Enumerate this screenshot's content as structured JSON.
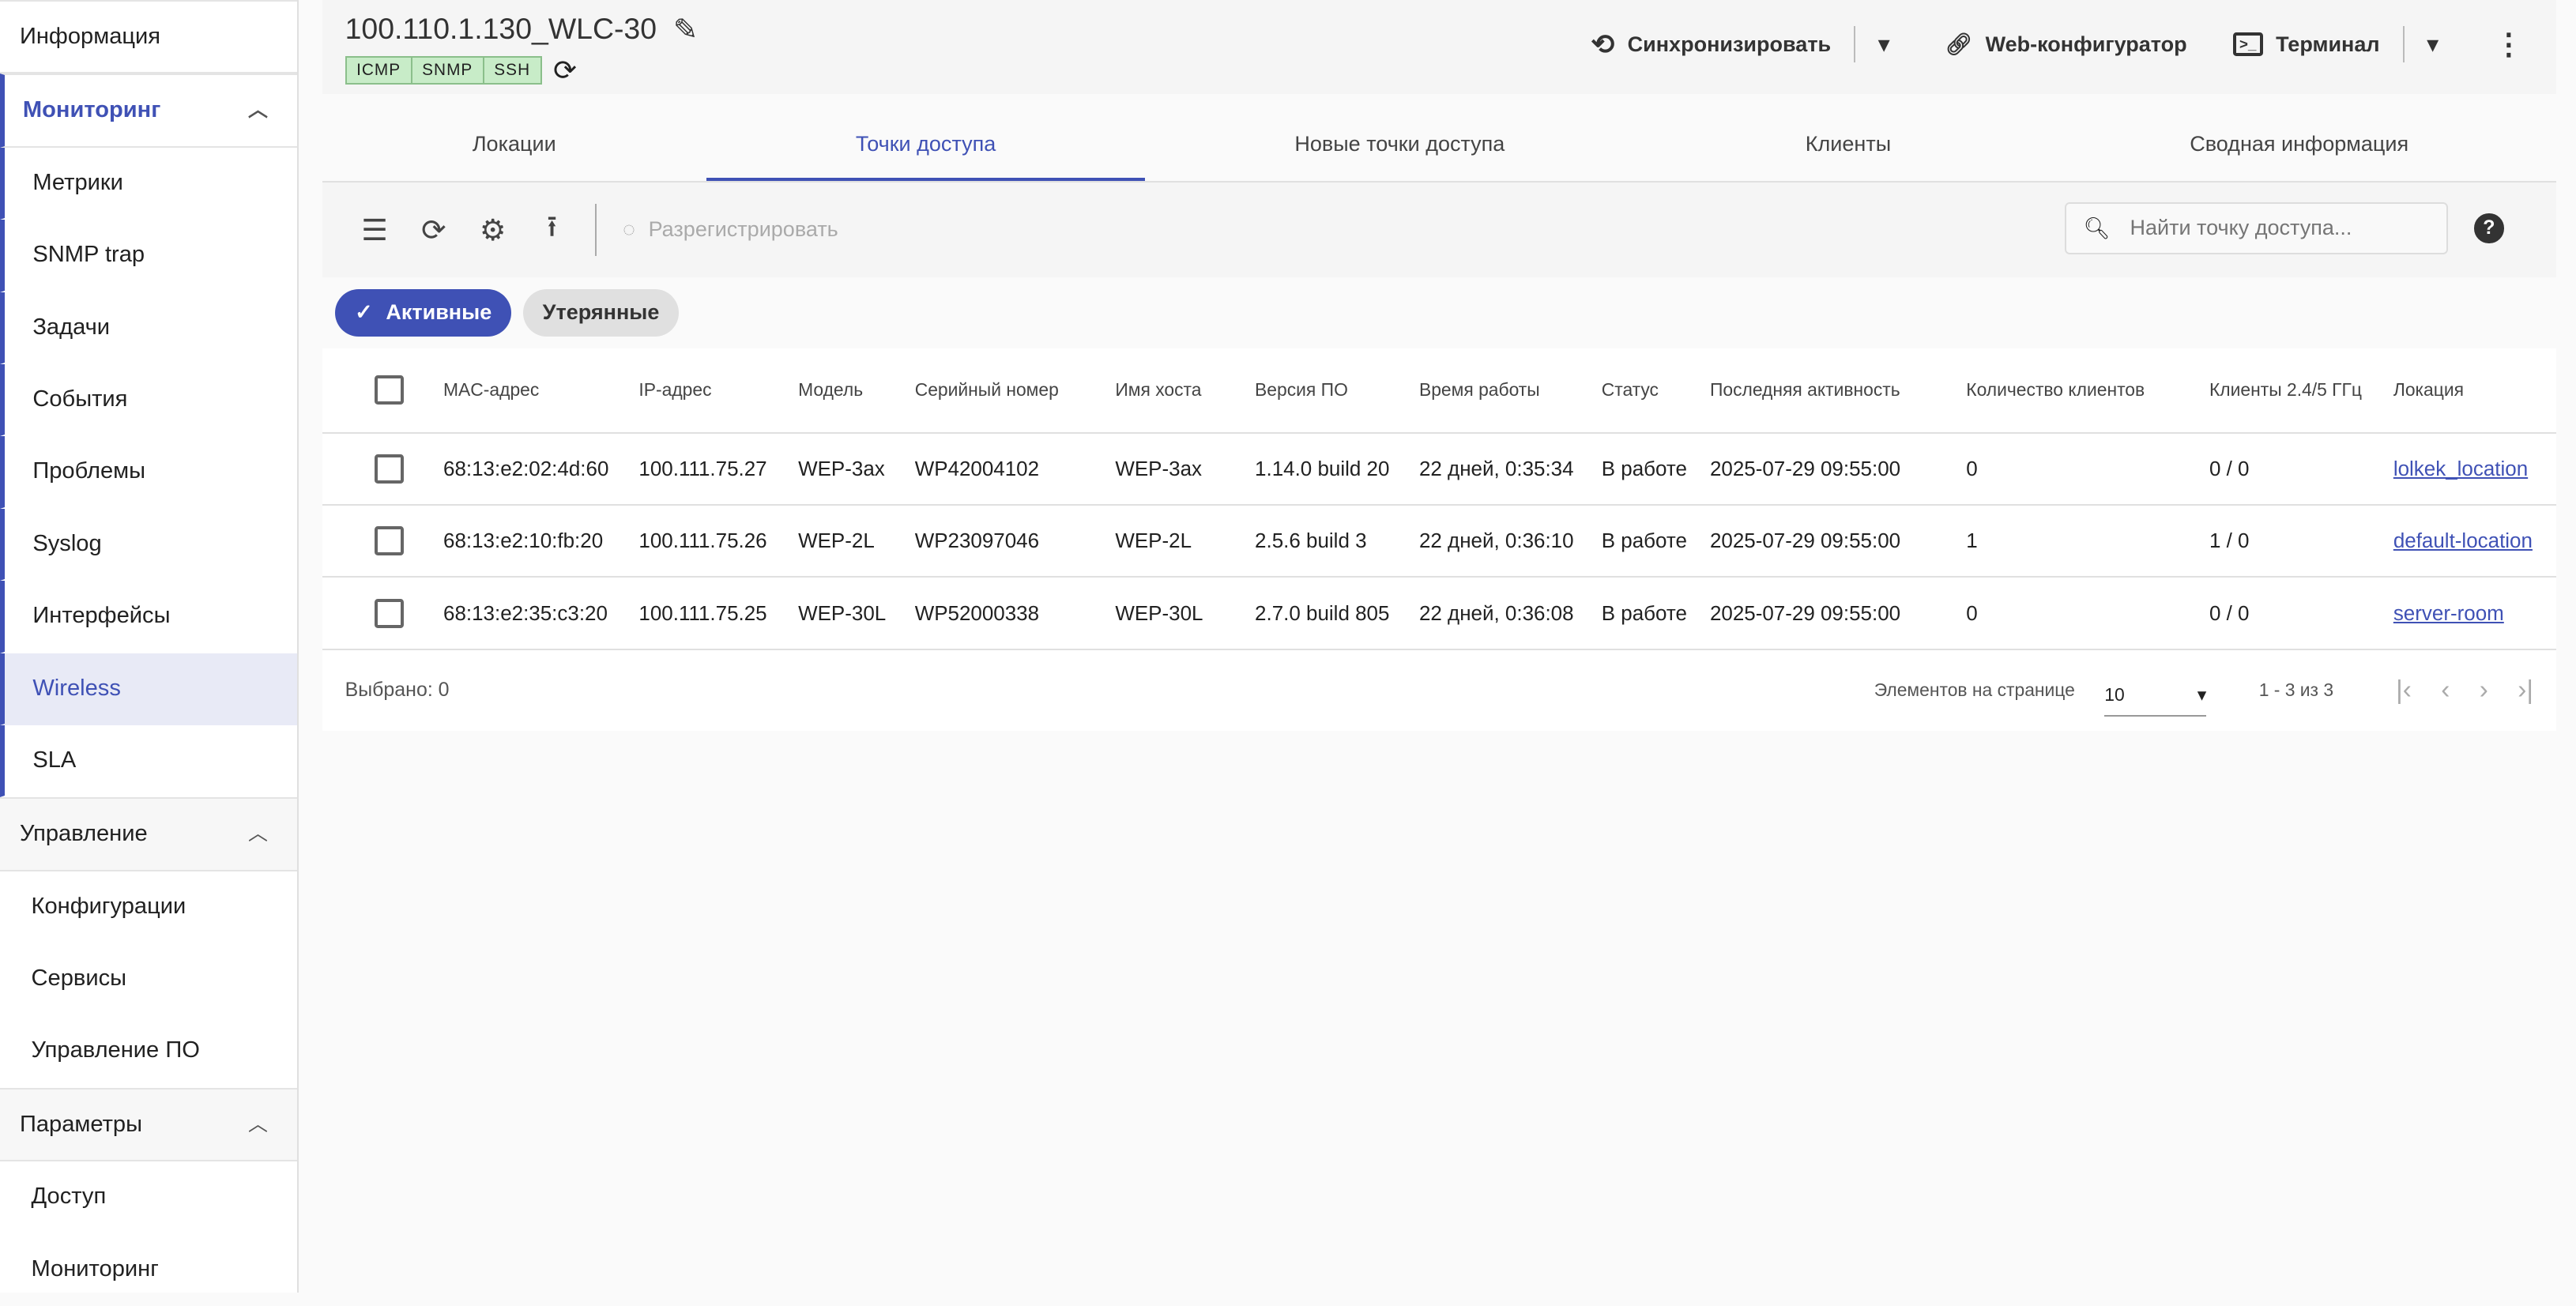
{
  "sidebar": {
    "info": "Информация",
    "monitoring": "Мониторинг",
    "monitoring_items": [
      "Метрики",
      "SNMP trap",
      "Задачи",
      "События",
      "Проблемы",
      "Syslog",
      "Интерфейсы",
      "Wireless",
      "SLA"
    ],
    "active": "Wireless",
    "management": "Управление",
    "management_items": [
      "Конфигурации",
      "Сервисы",
      "Управление ПО"
    ],
    "params": "Параметры",
    "params_items": [
      "Доступ",
      "Мониторинг"
    ]
  },
  "header": {
    "title": "100.110.1.130_WLC-30",
    "badges": [
      "ICMP",
      "SNMP",
      "SSH"
    ],
    "sync": "Синхронизировать",
    "web": "Web-конфигуратор",
    "terminal": "Терминал"
  },
  "tabs": [
    "Локации",
    "Точки доступа",
    "Новые точки доступа",
    "Клиенты",
    "Сводная информация"
  ],
  "active_tab": "Точки доступа",
  "toolbar": {
    "unregister": "Разрегистрировать",
    "search_placeholder": "Найти точку доступа..."
  },
  "chips": {
    "active": "Активные",
    "lost": "Утерянные"
  },
  "table": {
    "columns": [
      "MAC-адрес",
      "IP-адрес",
      "Модель",
      "Серийный номер",
      "Имя хоста",
      "Версия ПО",
      "Время работы",
      "Статус",
      "Последняя активность",
      "Количество клиентов",
      "Клиенты 2.4/5 ГГц",
      "Локация"
    ],
    "rows": [
      [
        "68:13:e2:02:4d:60",
        "100.111.75.27",
        "WEP-3ax",
        "WP42004102",
        "WEP-3ax",
        "1.14.0 build 20",
        "22 дней, 0:35:34",
        "В работе",
        "2025-07-29 09:55:00",
        "0",
        "0 / 0",
        "lolkek_location"
      ],
      [
        "68:13:e2:10:fb:20",
        "100.111.75.26",
        "WEP-2L",
        "WP23097046",
        "WEP-2L",
        "2.5.6 build 3",
        "22 дней, 0:36:10",
        "В работе",
        "2025-07-29 09:55:00",
        "1",
        "1 / 0",
        "default-location"
      ],
      [
        "68:13:e2:35:c3:20",
        "100.111.75.25",
        "WEP-30L",
        "WP52000338",
        "WEP-30L",
        "2.7.0 build 805",
        "22 дней, 0:36:08",
        "В работе",
        "2025-07-29 09:55:00",
        "0",
        "0 / 0",
        "server-room"
      ]
    ]
  },
  "footer": {
    "selected": "Выбрано: 0",
    "per_page_label": "Элементов на странице",
    "per_page": "10",
    "range": "1 - 3 из 3"
  },
  "colors": {
    "accent": "#3f51b5",
    "badge": "#c8ecc8"
  }
}
